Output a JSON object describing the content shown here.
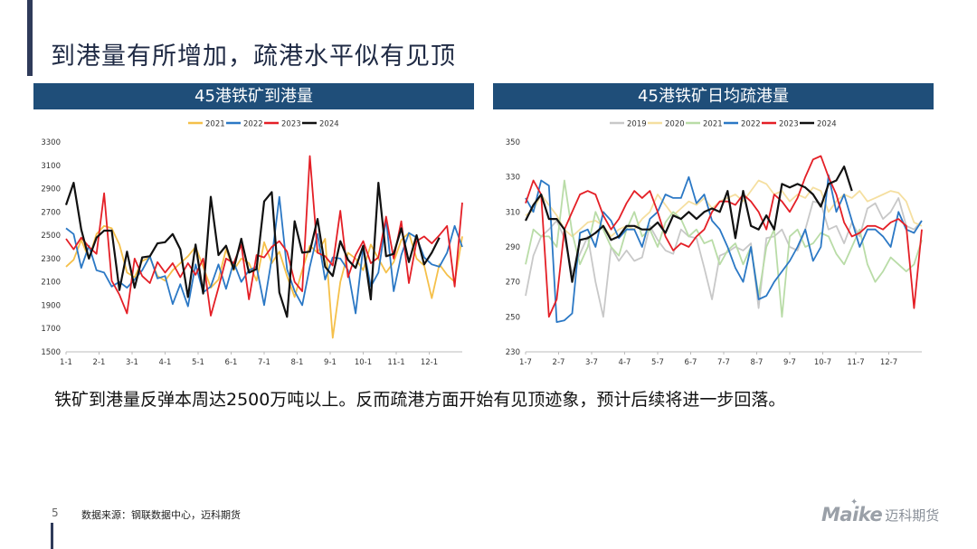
{
  "page": {
    "title": "到港量有所增加，疏港水平似有见顶",
    "summary": "铁矿到港量反弹本周达2500万吨以上。反而疏港方面开始有见顶迹象，预计后续将进一步回落。",
    "page_number": "5",
    "source": "数据来源：钢联数据中心，迈科期货",
    "logo_text": "Maike",
    "logo_cn": "迈科期货"
  },
  "colors": {
    "header_bg": "#1f4e79",
    "s2019": "#c8c8c8",
    "s2020": "#f5dfa0",
    "s2021": "#b9dca7",
    "s2021_left": "#f5c04a",
    "s2022": "#2b78c5",
    "s2023": "#e41f26",
    "s2024": "#111111"
  },
  "chart_data": [
    {
      "type": "line",
      "title": "45港铁矿到港量",
      "xlabel": "",
      "ylabel": "",
      "ylim": [
        1500,
        3300
      ],
      "yticks": [
        1500,
        1700,
        1900,
        2100,
        2300,
        2500,
        2700,
        2900,
        3100,
        3300
      ],
      "xticks": [
        "1-1",
        "2-1",
        "3-1",
        "4-1",
        "5-1",
        "6-1",
        "7-1",
        "8-1",
        "9-1",
        "10-1",
        "11-1",
        "12-1"
      ],
      "weeks": 53,
      "legend_position": "top",
      "series": [
        {
          "name": "2021",
          "color": "#f5c04a",
          "values": [
            2230,
            2290,
            2460,
            2300,
            2510,
            2580,
            2560,
            2420,
            2180,
            2140,
            2280,
            2310,
            2150,
            2110,
            2200,
            2260,
            2320,
            2400,
            2230,
            2050,
            2120,
            2380,
            2200,
            2300,
            2260,
            2110,
            2440,
            2260,
            2360,
            2150,
            1970,
            2200,
            2410,
            2350,
            2470,
            1620,
            2100,
            2350,
            2300,
            2200,
            2420,
            2300,
            2180,
            2270,
            2460,
            2520,
            2300,
            2240,
            1960,
            2250,
            2160,
            2100,
            2490
          ]
        },
        {
          "name": "2022",
          "color": "#2b78c5",
          "values": [
            2560,
            2510,
            2220,
            2410,
            2200,
            2180,
            2060,
            2100,
            2050,
            2120,
            2200,
            2320,
            2130,
            2150,
            1910,
            2080,
            1890,
            2250,
            2010,
            2060,
            2250,
            2040,
            2270,
            2100,
            2200,
            2230,
            1900,
            2300,
            2830,
            2210,
            2020,
            1900,
            2230,
            2510,
            2120,
            2310,
            2300,
            2200,
            1830,
            2400,
            2060,
            2180,
            2640,
            2020,
            2330,
            2520,
            2480,
            2310,
            2250,
            2230,
            2350,
            2580,
            2400
          ]
        },
        {
          "name": "2023",
          "color": "#e41f26",
          "values": [
            2470,
            2380,
            2480,
            2400,
            2340,
            2860,
            2110,
            1990,
            1830,
            2300,
            2150,
            2090,
            2270,
            2180,
            2260,
            2140,
            2260,
            2160,
            2300,
            1810,
            2050,
            2300,
            2260,
            2420,
            1950,
            2330,
            2310,
            2400,
            2450,
            2360,
            2100,
            2020,
            3180,
            2350,
            2320,
            2240,
            2710,
            2140,
            2330,
            2450,
            2260,
            2310,
            2660,
            2300,
            2620,
            2090,
            2450,
            2490,
            2430,
            2500,
            2580,
            2060,
            2780
          ]
        },
        {
          "name": "2024",
          "color": "#111111",
          "values": [
            2760,
            2950,
            2550,
            2300,
            2480,
            2540,
            2540,
            2030,
            2360,
            2050,
            2310,
            2320,
            2430,
            2440,
            2510,
            2380,
            1970,
            2420,
            2000,
            2830,
            2330,
            2410,
            2210,
            2470,
            2180,
            2210,
            2790,
            2870,
            2010,
            1800,
            2620,
            2350,
            2360,
            2640,
            2230,
            2150,
            2450,
            2290,
            2220,
            2410,
            1950,
            2950,
            2320,
            2340,
            2560,
            2270,
            2500,
            2250,
            2350,
            2480
          ]
        }
      ]
    },
    {
      "type": "line",
      "title": "45港铁矿日均疏港量",
      "xlabel": "",
      "ylabel": "",
      "ylim": [
        230,
        350
      ],
      "yticks": [
        230,
        250,
        270,
        290,
        310,
        330,
        350
      ],
      "xticks": [
        "1-7",
        "2-7",
        "3-7",
        "4-7",
        "5-7",
        "6-7",
        "7-7",
        "8-7",
        "9-7",
        "10-7",
        "11-7",
        "12-7"
      ],
      "weeks": 52,
      "legend_position": "top",
      "series": [
        {
          "name": "2019",
          "color": "#c8c8c8",
          "values": [
            262,
            285,
            296,
            300,
            305,
            295,
            275,
            286,
            296,
            270,
            250,
            290,
            282,
            288,
            282,
            284,
            302,
            294,
            288,
            286,
            300,
            296,
            295,
            278,
            260,
            285,
            287,
            290,
            288,
            292,
            255,
            295,
            296,
            300,
            290,
            288,
            300,
            316,
            315,
            300,
            302,
            292,
            304,
            296,
            312,
            315,
            306,
            310,
            318,
            302,
            300,
            305
          ]
        },
        {
          "name": "2020",
          "color": "#f5dfa0",
          "values": [
            308,
            311,
            320,
            314,
            308,
            300,
            296,
            300,
            304,
            305,
            302,
            296,
            300,
            302,
            300,
            306,
            310,
            320,
            314,
            308,
            312,
            316,
            314,
            318,
            312,
            316,
            318,
            320,
            316,
            322,
            328,
            326,
            320,
            322,
            316,
            320,
            318,
            324,
            322,
            310,
            316,
            320,
            318,
            322,
            316,
            318,
            320,
            322,
            321,
            316,
            304,
            302
          ]
        },
        {
          "name": "2021",
          "color": "#b9dca7",
          "values": [
            280,
            300,
            296,
            296,
            290,
            328,
            298,
            280,
            290,
            310,
            300,
            290,
            285,
            300,
            310,
            296,
            300,
            290,
            304,
            310,
            306,
            296,
            300,
            292,
            294,
            280,
            288,
            292,
            280,
            290,
            262,
            290,
            300,
            250,
            296,
            300,
            290,
            292,
            298,
            296,
            286,
            280,
            290,
            300,
            280,
            270,
            276,
            284,
            280,
            276,
            280,
            294
          ]
        },
        {
          "name": "2022",
          "color": "#2b78c5",
          "values": [
            318,
            310,
            328,
            325,
            247,
            248,
            252,
            298,
            300,
            290,
            310,
            305,
            295,
            300,
            300,
            290,
            306,
            310,
            320,
            318,
            318,
            330,
            315,
            320,
            305,
            300,
            290,
            278,
            270,
            290,
            260,
            262,
            270,
            276,
            282,
            290,
            300,
            282,
            290,
            331,
            310,
            320,
            305,
            290,
            300,
            300,
            296,
            290,
            310,
            300,
            298,
            305
          ]
        },
        {
          "name": "2023",
          "color": "#e41f26",
          "values": [
            315,
            328,
            320,
            250,
            260,
            300,
            310,
            320,
            322,
            320,
            308,
            300,
            306,
            315,
            322,
            318,
            322,
            310,
            296,
            288,
            292,
            290,
            296,
            300,
            310,
            316,
            316,
            314,
            320,
            316,
            310,
            300,
            320,
            316,
            310,
            318,
            330,
            340,
            342,
            330,
            320,
            304,
            296,
            298,
            302,
            302,
            300,
            304,
            306,
            302,
            255,
            300
          ]
        },
        {
          "name": "2024",
          "color": "#111111",
          "values": [
            305,
            314,
            320,
            306,
            306,
            300,
            270,
            294,
            295,
            298,
            302,
            294,
            296,
            302,
            302,
            300,
            300,
            304,
            298,
            308,
            306,
            310,
            306,
            310,
            312,
            310,
            322,
            295,
            322,
            302,
            300,
            308,
            300,
            326,
            324,
            326,
            324,
            320,
            313,
            326,
            328,
            336,
            322
          ]
        }
      ]
    }
  ]
}
